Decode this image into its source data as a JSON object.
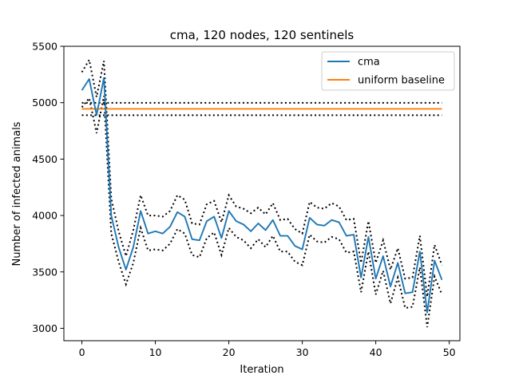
{
  "chart_data": {
    "type": "line",
    "title": "cma, 120 nodes, 120 sentinels",
    "xlabel": "Iteration",
    "ylabel": "Number of infected animals",
    "xlim": [
      -2.45,
      51.45
    ],
    "ylim": [
      2890,
      5500
    ],
    "xticks": [
      0,
      10,
      20,
      30,
      40,
      50
    ],
    "yticks": [
      3000,
      3500,
      4000,
      4500,
      5000,
      5500
    ],
    "grid": false,
    "legend_position": "top-right",
    "x": [
      0,
      1,
      2,
      3,
      4,
      5,
      6,
      7,
      8,
      9,
      10,
      11,
      12,
      13,
      14,
      15,
      16,
      17,
      18,
      19,
      20,
      21,
      22,
      23,
      24,
      25,
      26,
      27,
      28,
      29,
      30,
      31,
      32,
      33,
      34,
      35,
      36,
      37,
      38,
      39,
      40,
      41,
      42,
      43,
      44,
      45,
      46,
      47,
      48,
      49
    ],
    "series": [
      {
        "name": "cma",
        "color": "#1f77b4",
        "style": "solid",
        "values": [
          5110,
          5210,
          4890,
          5220,
          4000,
          3720,
          3520,
          3720,
          4040,
          3840,
          3860,
          3840,
          3900,
          4030,
          3990,
          3790,
          3780,
          3950,
          3990,
          3800,
          4040,
          3950,
          3920,
          3860,
          3930,
          3870,
          3960,
          3820,
          3820,
          3730,
          3700,
          3980,
          3920,
          3910,
          3960,
          3940,
          3820,
          3830,
          3450,
          3810,
          3440,
          3640,
          3370,
          3580,
          3310,
          3320,
          3680,
          3140,
          3600,
          3430
        ]
      },
      {
        "name": "uniform baseline",
        "color": "#ff7f0e",
        "style": "solid",
        "values": [
          4945,
          4945,
          4945,
          4945,
          4945,
          4945,
          4945,
          4945,
          4945,
          4945,
          4945,
          4945,
          4945,
          4945,
          4945,
          4945,
          4945,
          4945,
          4945,
          4945,
          4945,
          4945,
          4945,
          4945,
          4945,
          4945,
          4945,
          4945,
          4945,
          4945,
          4945,
          4945,
          4945,
          4945,
          4945,
          4945,
          4945,
          4945,
          4945,
          4945,
          4945,
          4945,
          4945,
          4945,
          4945,
          4945,
          4945,
          4945,
          4945,
          4945
        ]
      }
    ],
    "bands": [
      {
        "of": "cma",
        "color": "#000000",
        "style": "dotted",
        "upper": [
          5270,
          5380,
          5050,
          5370,
          4150,
          3860,
          3640,
          3870,
          4180,
          4000,
          4000,
          3990,
          4040,
          4180,
          4140,
          3930,
          3920,
          4100,
          4130,
          3940,
          4180,
          4080,
          4060,
          4020,
          4070,
          4010,
          4110,
          3960,
          3970,
          3880,
          3840,
          4120,
          4070,
          4060,
          4110,
          4080,
          3960,
          3970,
          3580,
          3950,
          3580,
          3780,
          3520,
          3710,
          3440,
          3450,
          3820,
          3280,
          3740,
          3560
        ],
        "lower": [
          4960,
          5040,
          4730,
          5060,
          3840,
          3590,
          3390,
          3580,
          3890,
          3690,
          3700,
          3690,
          3750,
          3880,
          3840,
          3650,
          3630,
          3800,
          3850,
          3650,
          3890,
          3810,
          3780,
          3710,
          3790,
          3720,
          3820,
          3680,
          3680,
          3590,
          3560,
          3830,
          3770,
          3760,
          3810,
          3790,
          3670,
          3680,
          3320,
          3680,
          3300,
          3510,
          3220,
          3450,
          3180,
          3190,
          3540,
          3010,
          3460,
          3300
        ]
      },
      {
        "of": "uniform baseline",
        "color": "#000000",
        "style": "dotted",
        "upper": 4999,
        "lower": 4889
      }
    ]
  }
}
